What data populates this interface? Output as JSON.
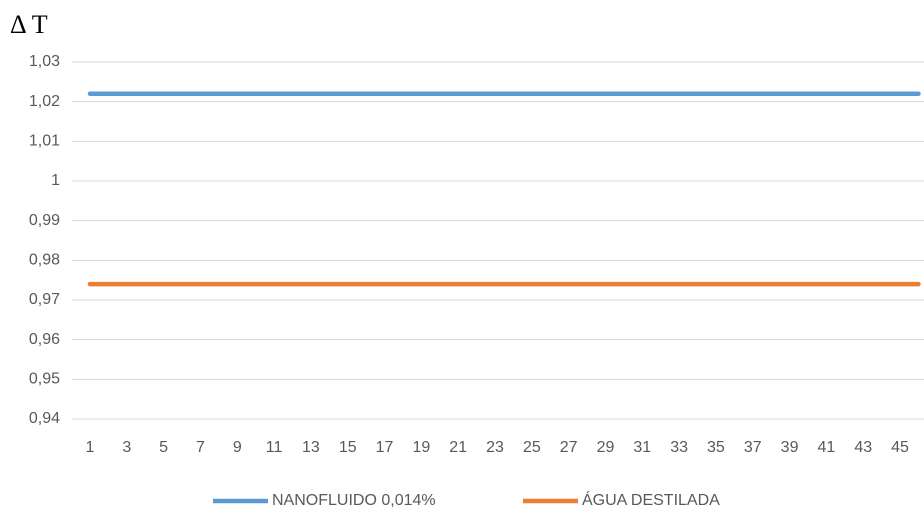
{
  "chart_data": {
    "type": "line",
    "title": "Δ T",
    "categories": [
      1,
      null,
      3,
      null,
      5,
      null,
      7,
      null,
      9,
      null,
      11,
      null,
      13,
      null,
      15,
      null,
      17,
      null,
      19,
      null,
      21,
      null,
      23,
      null,
      25,
      null,
      27,
      null,
      29,
      null,
      31,
      null,
      33,
      null,
      35,
      null,
      37,
      null,
      39,
      null,
      41,
      null,
      43,
      null,
      45,
      null
    ],
    "series": [
      {
        "name": "NANOFLUIDO 0,014%",
        "color": "#5b9bd5",
        "values": [
          1.022,
          1.022,
          1.022,
          1.022,
          1.022,
          1.022,
          1.022,
          1.022,
          1.022,
          1.022,
          1.022,
          1.022,
          1.022,
          1.022,
          1.022,
          1.022,
          1.022,
          1.022,
          1.022,
          1.022,
          1.022,
          1.022,
          1.022,
          1.022,
          1.022,
          1.022,
          1.022,
          1.022,
          1.022,
          1.022,
          1.022,
          1.022,
          1.022,
          1.022,
          1.022,
          1.022,
          1.022,
          1.022,
          1.022,
          1.022,
          1.022,
          1.022,
          1.022,
          1.022,
          1.022,
          1.022
        ]
      },
      {
        "name": "ÁGUA DESTILADA",
        "color": "#ed7d31",
        "values": [
          0.974,
          0.974,
          0.974,
          0.974,
          0.974,
          0.974,
          0.974,
          0.974,
          0.974,
          0.974,
          0.974,
          0.974,
          0.974,
          0.974,
          0.974,
          0.974,
          0.974,
          0.974,
          0.974,
          0.974,
          0.974,
          0.974,
          0.974,
          0.974,
          0.974,
          0.974,
          0.974,
          0.974,
          0.974,
          0.974,
          0.974,
          0.974,
          0.974,
          0.974,
          0.974,
          0.974,
          0.974,
          0.974,
          0.974,
          0.974,
          0.974,
          0.974,
          0.974,
          0.974,
          0.974,
          0.974
        ]
      }
    ],
    "ylim": [
      0.94,
      1.03
    ],
    "yticks": [
      {
        "value": 0.94,
        "label": "0,94"
      },
      {
        "value": 0.95,
        "label": "0,95"
      },
      {
        "value": 0.96,
        "label": "0,96"
      },
      {
        "value": 0.97,
        "label": "0,97"
      },
      {
        "value": 0.98,
        "label": "0,98"
      },
      {
        "value": 0.99,
        "label": "0,99"
      },
      1,
      {
        "value": 1.01,
        "label": "1,01"
      },
      {
        "value": 1.02,
        "label": "1,02"
      },
      {
        "value": 1.03,
        "label": "1,03"
      }
    ],
    "grid": true,
    "legend": "bottom"
  }
}
